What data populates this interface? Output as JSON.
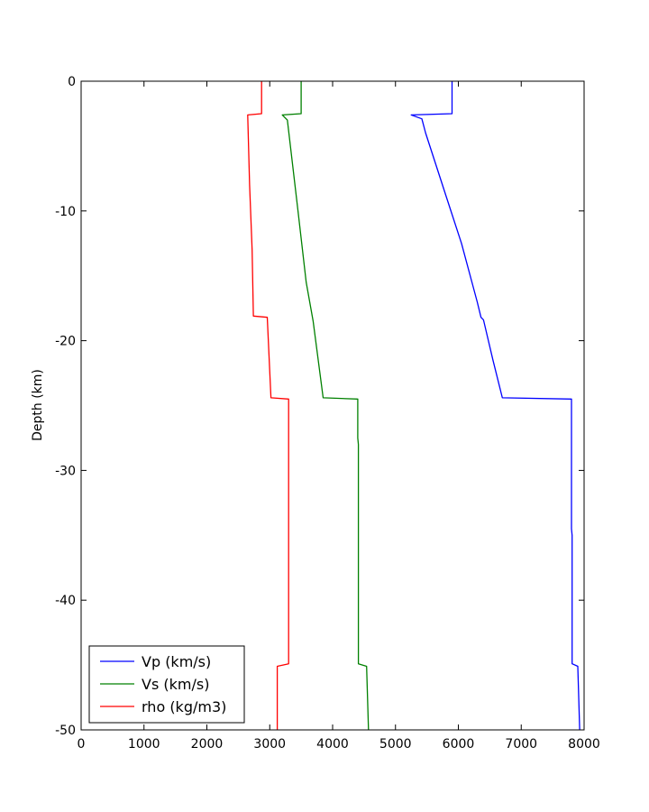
{
  "chart_data": {
    "type": "line",
    "title": "",
    "xlabel": "",
    "ylabel": "Depth (km)",
    "xlim": [
      0,
      8000
    ],
    "ylim": [
      -50,
      0
    ],
    "xticks": [
      0,
      1000,
      2000,
      3000,
      4000,
      5000,
      6000,
      7000,
      8000
    ],
    "yticks": [
      0,
      -10,
      -20,
      -30,
      -40,
      -50
    ],
    "grid": false,
    "legend_position": "lower-left",
    "series": [
      {
        "name": "Vp (km/s)",
        "color": "#0000ff",
        "points": [
          [
            5900,
            0
          ],
          [
            5900,
            -2.5
          ],
          [
            5250,
            -2.6
          ],
          [
            5420,
            -2.9
          ],
          [
            5480,
            -4.0
          ],
          [
            5800,
            -8.8
          ],
          [
            6050,
            -12.5
          ],
          [
            6300,
            -17.0
          ],
          [
            6360,
            -18.2
          ],
          [
            6400,
            -18.4
          ],
          [
            6550,
            -21.5
          ],
          [
            6700,
            -24.4
          ],
          [
            7800,
            -24.5
          ],
          [
            7800,
            -34.5
          ],
          [
            7810,
            -35.0
          ],
          [
            7810,
            -44.9
          ],
          [
            7900,
            -45.1
          ],
          [
            7930,
            -50.0
          ]
        ]
      },
      {
        "name": "Vs (km/s)",
        "color": "#008000",
        "points": [
          [
            3500,
            0
          ],
          [
            3500,
            -2.5
          ],
          [
            3200,
            -2.6
          ],
          [
            3280,
            -3.0
          ],
          [
            3450,
            -10.0
          ],
          [
            3580,
            -15.5
          ],
          [
            3690,
            -18.5
          ],
          [
            3850,
            -24.4
          ],
          [
            4400,
            -24.5
          ],
          [
            4400,
            -27.5
          ],
          [
            4410,
            -28.0
          ],
          [
            4410,
            -44.9
          ],
          [
            4540,
            -45.1
          ],
          [
            4570,
            -50.0
          ]
        ]
      },
      {
        "name": "rho (kg/m3)",
        "color": "#ff0000",
        "points": [
          [
            2870,
            0
          ],
          [
            2870,
            -2.5
          ],
          [
            2650,
            -2.6
          ],
          [
            2680,
            -8.0
          ],
          [
            2720,
            -13.0
          ],
          [
            2740,
            -18.1
          ],
          [
            2960,
            -18.2
          ],
          [
            3020,
            -24.4
          ],
          [
            3300,
            -24.5
          ],
          [
            3300,
            -44.9
          ],
          [
            3120,
            -45.1
          ],
          [
            3120,
            -50.0
          ]
        ]
      }
    ]
  }
}
